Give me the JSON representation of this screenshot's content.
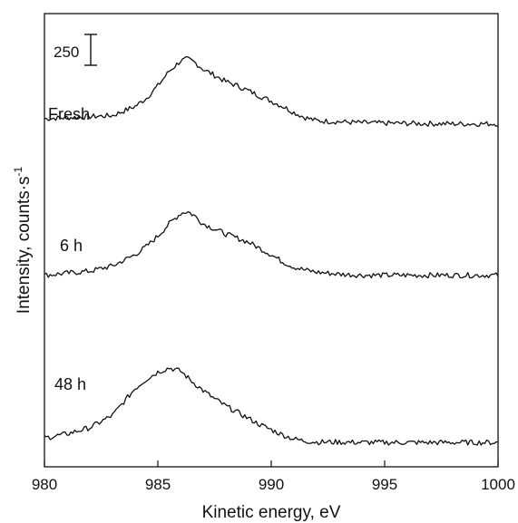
{
  "chart_data": {
    "type": "line",
    "xlabel": "Kinetic energy, eV",
    "ylabel": "Intensity, counts·s",
    "ylabel_sup": "-1",
    "xlim": [
      980,
      1000
    ],
    "xticks": [
      "980",
      "985",
      "990",
      "995",
      "1000"
    ],
    "scale_bar": {
      "label": "250",
      "value": 250
    },
    "y_unit_note": "relative intensity, curves vertically offset",
    "series": [
      {
        "name": "Fresh",
        "offset": 1690,
        "x": [
          980,
          981,
          982,
          983,
          984,
          984.5,
          985,
          985.5,
          986,
          986.3,
          986.6,
          987,
          987.5,
          988,
          988.5,
          989,
          989.5,
          990,
          990.5,
          991,
          991.5,
          992,
          993,
          994,
          995,
          996,
          997,
          998,
          999,
          1000
        ],
        "y": [
          0,
          5,
          10,
          15,
          60,
          100,
          160,
          230,
          280,
          290,
          275,
          240,
          210,
          180,
          160,
          135,
          110,
          85,
          60,
          30,
          5,
          -10,
          -15,
          -20,
          -22,
          -23,
          -24,
          -25,
          -25,
          -25
        ]
      },
      {
        "name": "6 h",
        "offset": 930,
        "x": [
          980,
          981,
          982,
          983,
          984,
          984.5,
          985,
          985.5,
          986,
          986.3,
          986.6,
          987,
          987.5,
          988,
          988.5,
          989,
          989.5,
          990,
          990.5,
          991,
          991.5,
          992,
          993,
          994,
          995,
          996,
          997,
          998,
          999,
          1000
        ],
        "y": [
          0,
          10,
          20,
          45,
          100,
          140,
          190,
          250,
          300,
          310,
          290,
          250,
          225,
          200,
          180,
          160,
          130,
          100,
          65,
          40,
          25,
          15,
          5,
          0,
          0,
          0,
          0,
          0,
          0,
          0
        ]
      },
      {
        "name": "48 h",
        "offset": 140,
        "x": [
          980,
          981,
          982,
          983,
          983.5,
          984,
          984.5,
          985,
          985.5,
          986,
          986.5,
          987,
          987.5,
          988,
          988.5,
          989,
          989.5,
          990,
          990.5,
          991,
          991.5,
          992,
          993,
          994,
          995,
          996,
          997,
          998,
          999,
          1000
        ],
        "y": [
          0,
          20,
          50,
          110,
          175,
          240,
          285,
          320,
          340,
          325,
          275,
          230,
          190,
          155,
          125,
          95,
          65,
          40,
          15,
          -5,
          -15,
          -20,
          -20,
          -22,
          -22,
          -22,
          -22,
          -22,
          -22,
          -22
        ]
      }
    ]
  }
}
